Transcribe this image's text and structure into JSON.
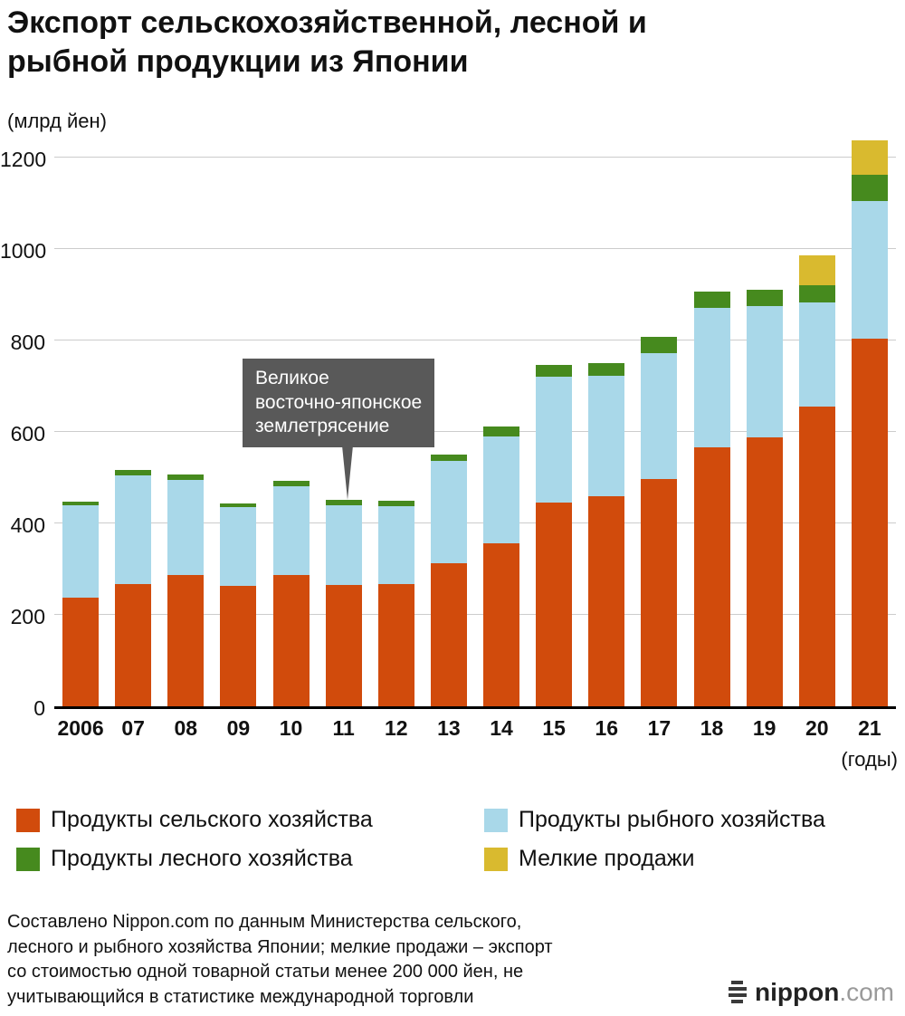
{
  "title": "Экспорт сельскохозяйственной, лесной и\nрыбной продукции из Японии",
  "y_axis_unit": "(млрд йен)",
  "x_axis_unit": "(годы)",
  "annotation": {
    "text": "Великое\nвосточно-японское\nземлетрясение",
    "points_to_year": "11"
  },
  "source_text": "Составлено Nippon.com по данным Министерства сельского,\nлесного и рыбного хозяйства Японии; мелкие продажи – экспорт\nсо стоимостью одной товарной статьи менее 200 000 йен, не\nучитывающийся в статистике международной торговли",
  "logo": {
    "brand": "nippon",
    "suffix": ".com"
  },
  "colors": {
    "agriculture": "#d14b0c",
    "fisheries": "#a9d8e9",
    "forestry": "#468a1e",
    "small_sales": "#d9ba2f",
    "annotation_bg": "#595959",
    "gridline": "#cccccc"
  },
  "chart_data": {
    "type": "bar",
    "subtype": "stacked",
    "categories": [
      "2006",
      "07",
      "08",
      "09",
      "10",
      "11",
      "12",
      "13",
      "14",
      "15",
      "16",
      "17",
      "18",
      "19",
      "20",
      "21"
    ],
    "series": [
      {
        "name": "Продукты сельского хозяйства",
        "color": "#d14b0c",
        "values": [
          238,
          267,
          288,
          264,
          287,
          265,
          268,
          313,
          357,
          445,
          459,
          497,
          566,
          588,
          656,
          804
        ]
      },
      {
        "name": "Продукты рыбного хозяйства",
        "color": "#a9d8e9",
        "values": [
          201,
          238,
          208,
          171,
          195,
          175,
          170,
          223,
          234,
          276,
          264,
          275,
          306,
          287,
          228,
          302
        ]
      },
      {
        "name": "Продукты лесного хозяйства",
        "color": "#468a1e",
        "values": [
          9,
          13,
          12,
          9,
          11,
          12,
          12,
          15,
          21,
          26,
          27,
          36,
          35,
          37,
          38,
          57
        ]
      },
      {
        "name": "Мелкие продажи",
        "color": "#d9ba2f",
        "values": [
          0,
          0,
          0,
          0,
          0,
          0,
          0,
          0,
          0,
          0,
          0,
          0,
          0,
          0,
          64,
          76
        ]
      }
    ],
    "title": "Экспорт сельскохозяйственной, лесной и рыбной продукции из Японии",
    "xlabel": "(годы)",
    "ylabel": "(млрд йен)",
    "ylim": [
      0,
      1240
    ],
    "yticks": [
      0,
      200,
      400,
      600,
      800,
      1000,
      1200
    ],
    "grid": true,
    "legend_position": "bottom"
  }
}
